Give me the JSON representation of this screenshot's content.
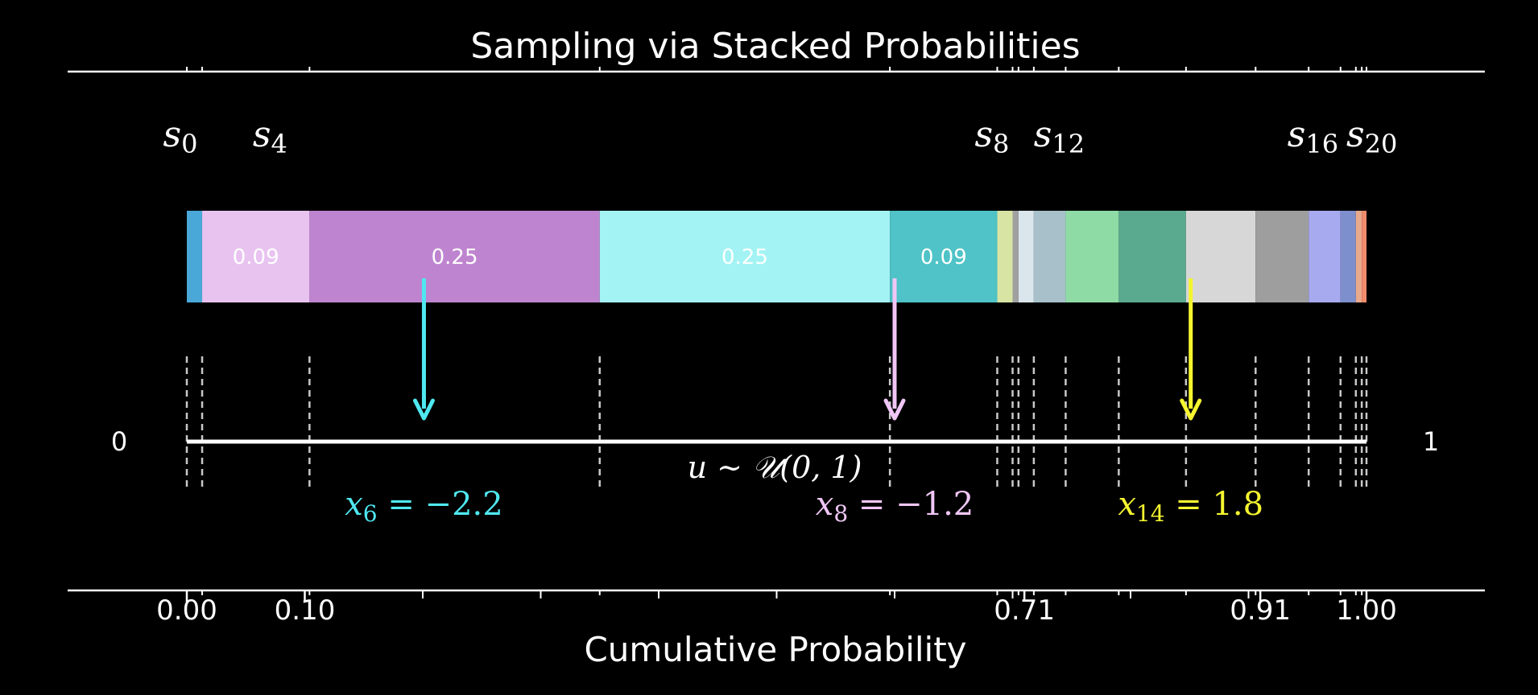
{
  "title": "Sampling via Stacked Probabilities",
  "xlabel": "Cumulative Probability",
  "axis": {
    "left_label": "0",
    "right_label": "1",
    "uniform_label": "u ∼ 𝒰(0, 1)",
    "ticks": [
      {
        "value": 0.0,
        "label": "0.00"
      },
      {
        "value": 0.1,
        "label": "0.10"
      },
      {
        "value": 0.71,
        "label": "0.71"
      },
      {
        "value": 0.91,
        "label": "0.91"
      },
      {
        "value": 1.0,
        "label": "1.00"
      }
    ]
  },
  "state_labels": [
    {
      "sym": "s",
      "sub": "0",
      "p": 0.0
    },
    {
      "sym": "s",
      "sub": "4",
      "p": 0.076
    },
    {
      "sym": "s",
      "sub": "8",
      "p": 0.688
    },
    {
      "sym": "s",
      "sub": "12",
      "p": 0.745
    },
    {
      "sym": "s",
      "sub": "16",
      "p": 0.96
    },
    {
      "sym": "s",
      "sub": "20",
      "p": 1.01
    }
  ],
  "chart_data": {
    "type": "bar",
    "orientation": "horizontal-stacked",
    "segments": [
      {
        "value": 0.013,
        "color": "#4aa8d8",
        "label": ""
      },
      {
        "value": 0.091,
        "color": "#e8c3f0",
        "label": "0.09"
      },
      {
        "value": 0.246,
        "color": "#bf84cf",
        "label": "0.25"
      },
      {
        "value": 0.246,
        "color": "#a3f3f4",
        "label": "0.25"
      },
      {
        "value": 0.091,
        "color": "#4fc3c7",
        "label": "0.09"
      },
      {
        "value": 0.013,
        "color": "#d8e4a4",
        "label": ""
      },
      {
        "value": 0.005,
        "color": "#a0a0a0",
        "label": ""
      },
      {
        "value": 0.013,
        "color": "#dbe6ec",
        "label": ""
      },
      {
        "value": 0.027,
        "color": "#a7c0c9",
        "label": ""
      },
      {
        "value": 0.045,
        "color": "#8fdba5",
        "label": ""
      },
      {
        "value": 0.057,
        "color": "#5aaa90",
        "label": ""
      },
      {
        "value": 0.059,
        "color": "#d7d7d7",
        "label": ""
      },
      {
        "value": 0.045,
        "color": "#9e9e9e",
        "label": ""
      },
      {
        "value": 0.027,
        "color": "#a8aaf0",
        "label": ""
      },
      {
        "value": 0.013,
        "color": "#7d8fcc",
        "label": ""
      },
      {
        "value": 0.005,
        "color": "#e8a98c",
        "label": ""
      },
      {
        "value": 0.004,
        "color": "#f08c6c",
        "label": ""
      }
    ],
    "boundaries": [
      0.0,
      0.013,
      0.104,
      0.35,
      0.596,
      0.687,
      0.7,
      0.705,
      0.718,
      0.745,
      0.79,
      0.847,
      0.906,
      0.951,
      0.978,
      0.991,
      0.996,
      1.0
    ],
    "samples": [
      {
        "u": 0.201,
        "color": "#4fe8f0",
        "var": "x",
        "sub": "6",
        "eq": " = −2.2"
      },
      {
        "u": 0.6,
        "color": "#f0c6f6",
        "var": "x",
        "sub": "8",
        "eq": " = −1.2"
      },
      {
        "u": 0.851,
        "color": "#f5f530",
        "var": "x",
        "sub": "14",
        "eq": " = 1.8"
      }
    ],
    "xlim": [
      0,
      1
    ]
  }
}
